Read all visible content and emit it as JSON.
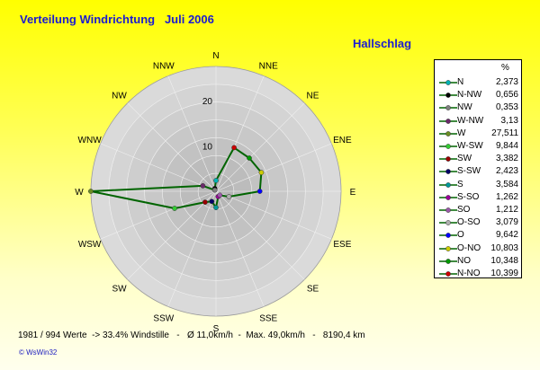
{
  "header": {
    "title": "Verteilung Windrichtung   Juli 2006",
    "station": "Hallschlag"
  },
  "legend": {
    "unit_label": "%"
  },
  "footer": {
    "stats": "1981 / 994 Werte  -> 33.4% Windstille   -   Ø 11,0km/h  -  Max. 49,0km/h   -   8190,4 km",
    "credit": "© WsWin32"
  },
  "chart_data": {
    "type": "radar",
    "directions": [
      "N",
      "NNE",
      "NE",
      "ENE",
      "E",
      "ESE",
      "SE",
      "SSE",
      "S",
      "SSW",
      "SW",
      "WSW",
      "W",
      "WNW",
      "NW",
      "NNW"
    ],
    "ring_labels": [
      "10",
      "20"
    ],
    "rmax": 27.5,
    "grid": true,
    "legend_position": "right",
    "series": [
      {
        "name": "N",
        "value": "2,373",
        "num": 2.373,
        "color": "#00b3b3",
        "angle": 0
      },
      {
        "name": "N-NW",
        "value": "0,656",
        "num": 0.656,
        "color": "#000000",
        "angle": 337.5
      },
      {
        "name": "NW",
        "value": "0,353",
        "num": 0.353,
        "color": "#808080",
        "angle": 315
      },
      {
        "name": "W-NW",
        "value": "3,13",
        "num": 3.13,
        "color": "#6a2a6a",
        "angle": 292.5
      },
      {
        "name": "W",
        "value": "27,511",
        "num": 27.511,
        "color": "#6b8e23",
        "angle": 270
      },
      {
        "name": "W-SW",
        "value": "9,844",
        "num": 9.844,
        "color": "#33cc33",
        "angle": 247.5
      },
      {
        "name": "SW",
        "value": "3,382",
        "num": 3.382,
        "color": "#990000",
        "angle": 225
      },
      {
        "name": "S-SW",
        "value": "2,423",
        "num": 2.423,
        "color": "#000066",
        "angle": 202.5
      },
      {
        "name": "S",
        "value": "3,584",
        "num": 3.584,
        "color": "#009999",
        "angle": 180
      },
      {
        "name": "S-SO",
        "value": "1,262",
        "num": 1.262,
        "color": "#990099",
        "angle": 157.5
      },
      {
        "name": "SO",
        "value": "1,212",
        "num": 1.212,
        "color": "#9b5ba8",
        "angle": 135
      },
      {
        "name": "O-SO",
        "value": "3,079",
        "num": 3.079,
        "color": "#b0b0b0",
        "angle": 112.5
      },
      {
        "name": "O",
        "value": "9,642",
        "num": 9.642,
        "color": "#0000ff",
        "angle": 90
      },
      {
        "name": "O-NO",
        "value": "10,803",
        "num": 10.803,
        "color": "#cccc00",
        "angle": 67.5
      },
      {
        "name": "NO",
        "value": "10,348",
        "num": 10.348,
        "color": "#009900",
        "angle": 45
      },
      {
        "name": "N-NO",
        "value": "10,399",
        "num": 10.399,
        "color": "#cc0000",
        "angle": 22.5
      }
    ]
  }
}
